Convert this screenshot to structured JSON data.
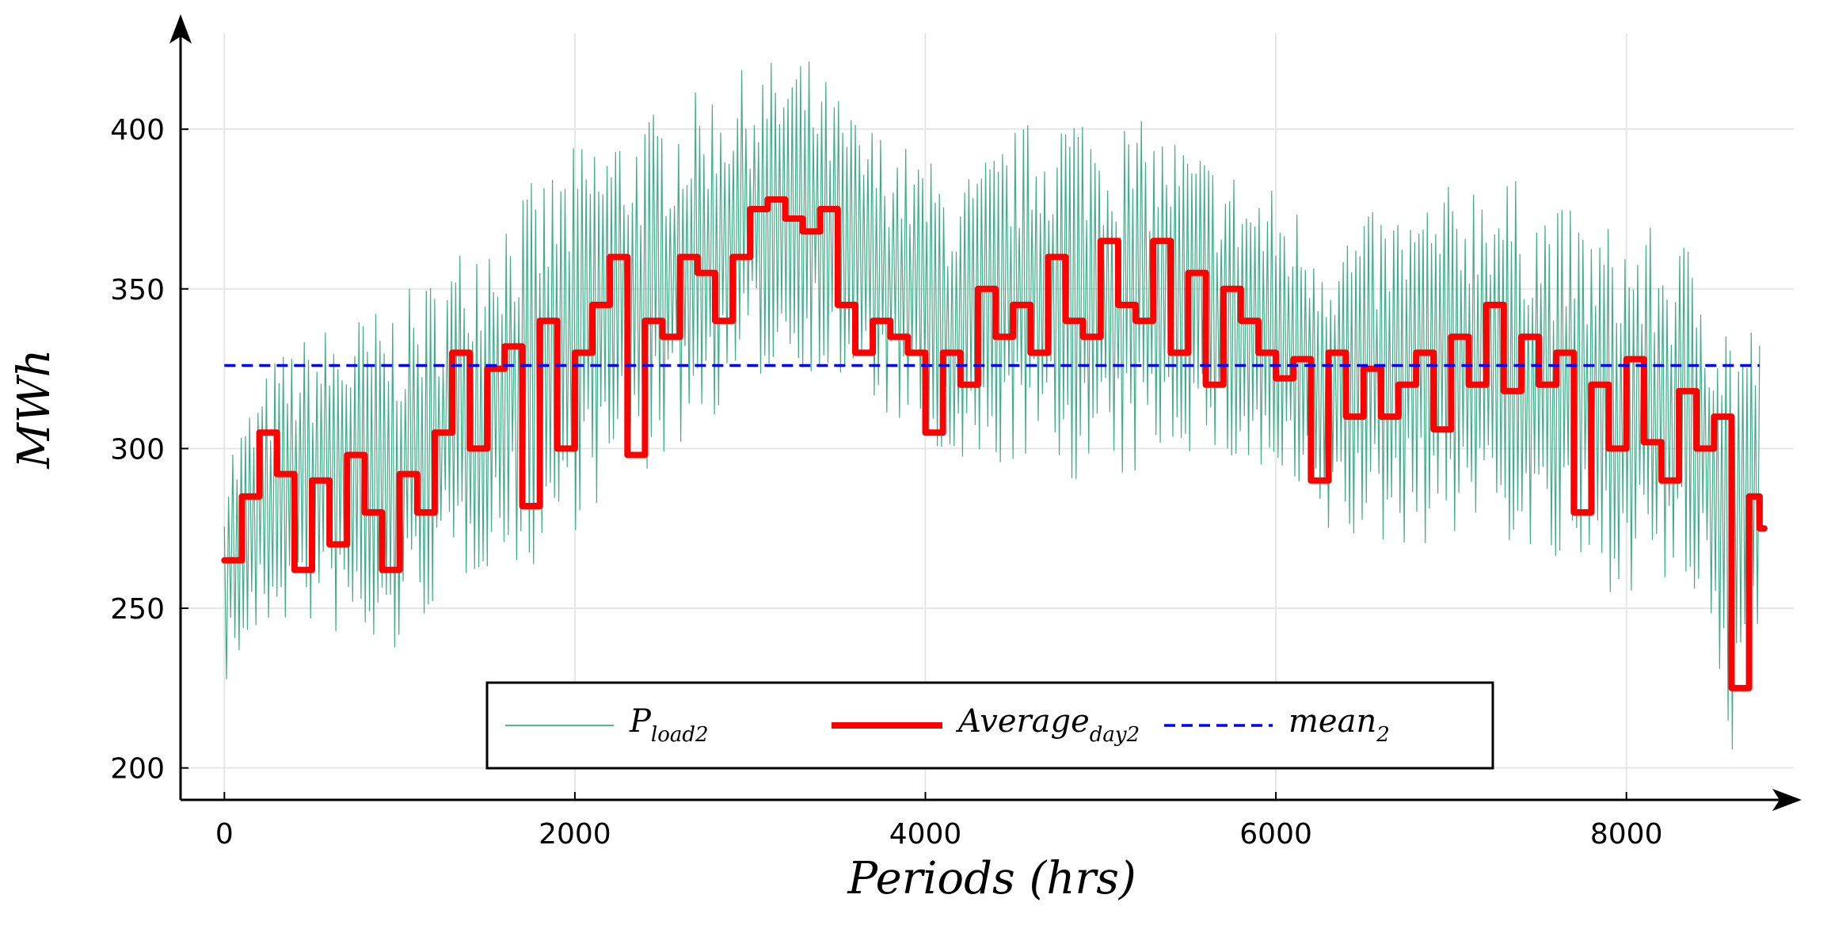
{
  "chart_data": {
    "type": "line",
    "xlabel": "Periods (hrs)",
    "ylabel": "MWh",
    "xlim": [
      -250,
      9000
    ],
    "ylim": [
      190,
      435
    ],
    "x_ticks": [
      0,
      2000,
      4000,
      6000,
      8000
    ],
    "y_ticks": [
      200,
      250,
      300,
      350,
      400
    ],
    "x_tick_labels": [
      "0",
      "2000",
      "4000",
      "6000",
      "8000"
    ],
    "y_tick_labels": [
      "200",
      "250",
      "300",
      "350",
      "400"
    ],
    "grid": true,
    "legend_position": "bottom-center",
    "colors": {
      "load": "#1f9e74",
      "average": "#ff0000",
      "mean": "#0000ff"
    },
    "series": [
      {
        "name": "P_load2",
        "label_main": "P",
        "label_sub": "load2",
        "style": "thin-line",
        "note": "hourly load; envelope as [x, min, max] samples",
        "envelope": [
          [
            0,
            225,
            300
          ],
          [
            300,
            245,
            330
          ],
          [
            600,
            242,
            340
          ],
          [
            900,
            228,
            345
          ],
          [
            1200,
            250,
            355
          ],
          [
            1500,
            262,
            375
          ],
          [
            1800,
            262,
            385
          ],
          [
            2100,
            280,
            400
          ],
          [
            2400,
            290,
            405
          ],
          [
            2700,
            305,
            412
          ],
          [
            3000,
            320,
            420
          ],
          [
            3300,
            325,
            425
          ],
          [
            3600,
            315,
            405
          ],
          [
            3900,
            305,
            395
          ],
          [
            4200,
            285,
            385
          ],
          [
            4500,
            295,
            400
          ],
          [
            4800,
            290,
            410
          ],
          [
            5100,
            285,
            405
          ],
          [
            5400,
            300,
            400
          ],
          [
            5700,
            295,
            390
          ],
          [
            6000,
            285,
            382
          ],
          [
            6300,
            270,
            370
          ],
          [
            6600,
            268,
            375
          ],
          [
            6900,
            270,
            380
          ],
          [
            7200,
            275,
            390
          ],
          [
            7500,
            262,
            380
          ],
          [
            7800,
            255,
            372
          ],
          [
            8100,
            255,
            370
          ],
          [
            8400,
            250,
            365
          ],
          [
            8600,
            198,
            345
          ],
          [
            8760,
            248,
            340
          ]
        ]
      },
      {
        "name": "Average_day2",
        "label_main": "Average",
        "label_sub": "day2",
        "style": "thick-step",
        "x": [
          0,
          100,
          200,
          300,
          400,
          500,
          600,
          700,
          800,
          900,
          1000,
          1100,
          1200,
          1300,
          1400,
          1500,
          1600,
          1700,
          1800,
          1900,
          2000,
          2100,
          2200,
          2300,
          2400,
          2500,
          2600,
          2700,
          2800,
          2900,
          3000,
          3100,
          3200,
          3300,
          3400,
          3500,
          3600,
          3700,
          3800,
          3900,
          4000,
          4100,
          4200,
          4300,
          4400,
          4500,
          4600,
          4700,
          4800,
          4900,
          5000,
          5100,
          5200,
          5300,
          5400,
          5500,
          5600,
          5700,
          5800,
          5900,
          6000,
          6100,
          6200,
          6300,
          6400,
          6500,
          6600,
          6700,
          6800,
          6900,
          7000,
          7100,
          7200,
          7300,
          7400,
          7500,
          7600,
          7700,
          7800,
          7900,
          8000,
          8100,
          8200,
          8300,
          8400,
          8500,
          8600,
          8700,
          8760
        ],
        "values": [
          265,
          285,
          305,
          292,
          262,
          290,
          270,
          298,
          280,
          262,
          292,
          280,
          305,
          330,
          300,
          325,
          332,
          282,
          340,
          300,
          330,
          345,
          360,
          298,
          340,
          335,
          360,
          355,
          340,
          360,
          375,
          378,
          372,
          368,
          375,
          345,
          330,
          340,
          335,
          330,
          305,
          330,
          320,
          350,
          335,
          345,
          330,
          360,
          340,
          335,
          365,
          345,
          340,
          365,
          330,
          355,
          320,
          350,
          340,
          330,
          322,
          328,
          290,
          330,
          310,
          325,
          310,
          320,
          330,
          306,
          335,
          320,
          345,
          318,
          335,
          320,
          330,
          280,
          320,
          300,
          328,
          302,
          290,
          318,
          300,
          310,
          225,
          285,
          275
        ]
      },
      {
        "name": "mean_2",
        "label_main": "mean",
        "label_sub": "2",
        "style": "dashed",
        "x": [
          0,
          8760
        ],
        "values": [
          326,
          326
        ]
      }
    ]
  }
}
